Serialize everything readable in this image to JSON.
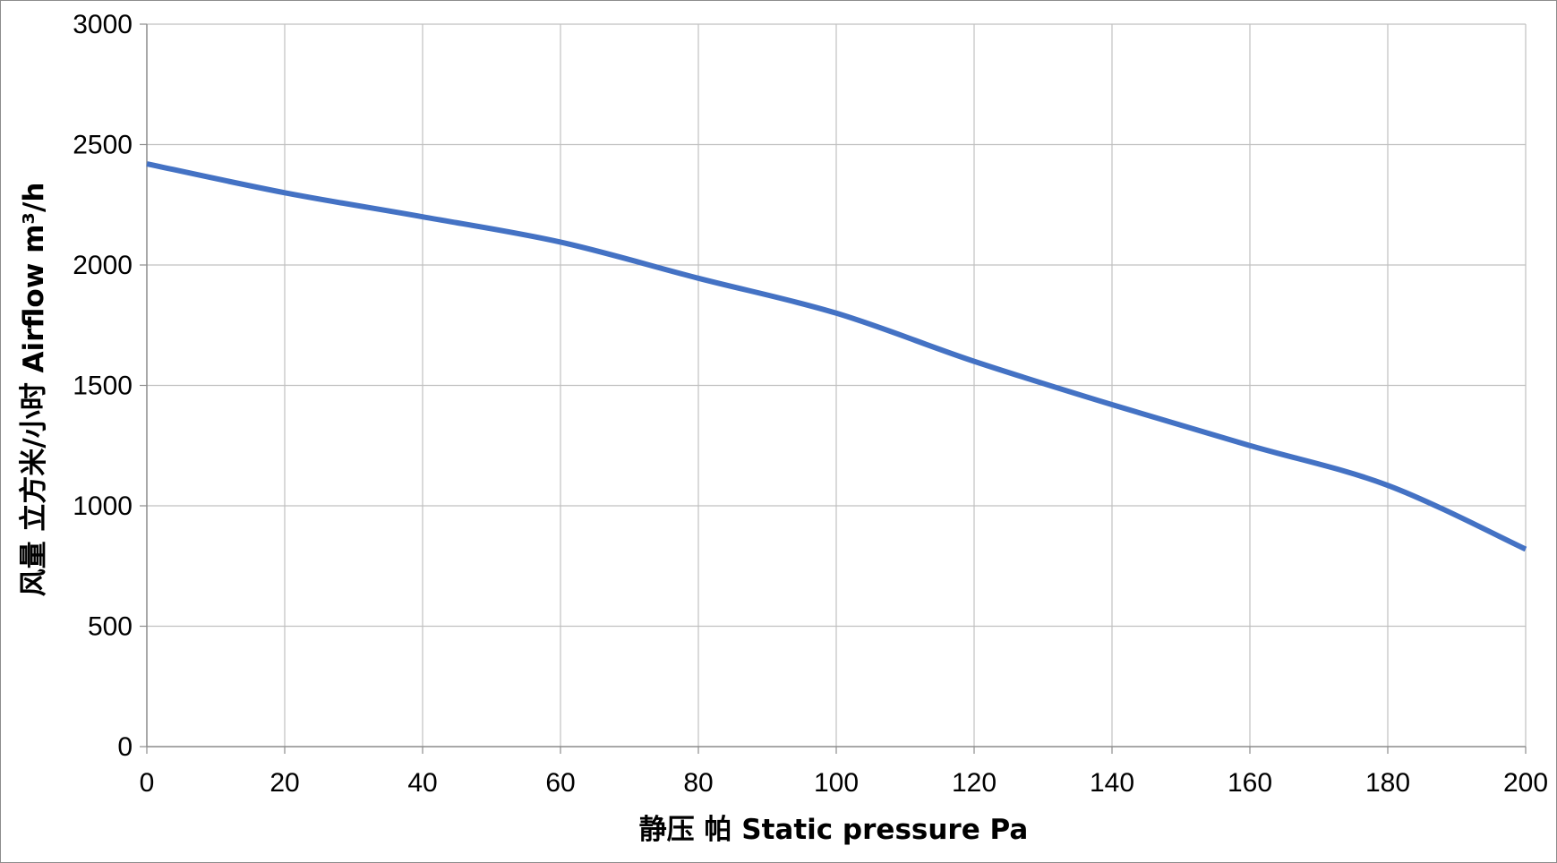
{
  "chart_data": {
    "type": "line",
    "title": "",
    "xlabel": "静压 帕 Static pressure Pa",
    "ylabel": "风量 立方米/小时 Airflow m³/h",
    "xlim": [
      0,
      200
    ],
    "ylim": [
      0,
      3000
    ],
    "xticks": [
      0,
      20,
      40,
      60,
      80,
      100,
      120,
      140,
      160,
      180,
      200
    ],
    "yticks": [
      0,
      500,
      1000,
      1500,
      2000,
      2500,
      3000
    ],
    "grid": true,
    "legend": "none",
    "series": [
      {
        "name": "Airflow",
        "color": "#4472c4",
        "x": [
          0,
          20,
          40,
          60,
          80,
          100,
          120,
          140,
          160,
          180,
          200
        ],
        "y": [
          2420,
          2300,
          2200,
          2095,
          1945,
          1800,
          1600,
          1420,
          1250,
          1085,
          820
        ]
      }
    ]
  },
  "colors": {
    "grid": "#c0c0c0",
    "axis": "#8c8c8c",
    "line": "#4472c4"
  }
}
